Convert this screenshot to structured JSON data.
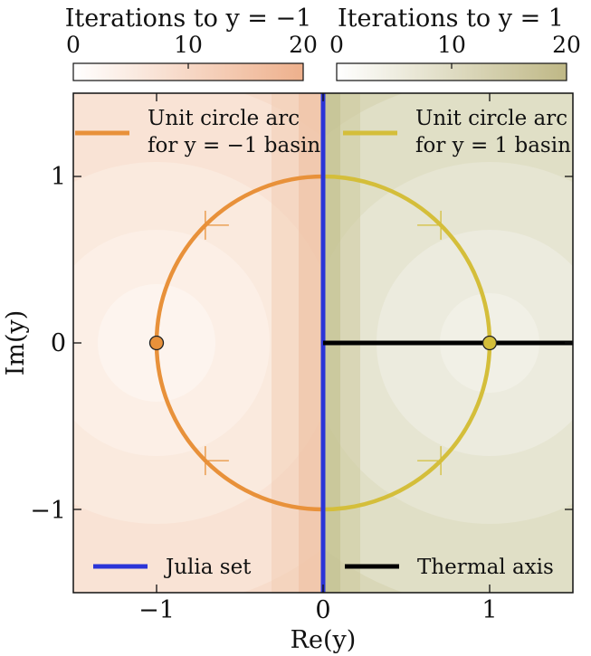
{
  "chart_data": {
    "type": "heatmap",
    "xlabel": "Re(y)",
    "ylabel": "Im(y)",
    "xlim": [
      -1.5,
      1.5
    ],
    "ylim": [
      -1.5,
      1.5
    ],
    "x_ticks": [
      -1,
      0,
      1
    ],
    "y_ticks": [
      -1,
      0,
      1
    ],
    "x_tick_labels": [
      "−1",
      "0",
      "1"
    ],
    "y_tick_labels": [
      "−1",
      "0",
      "1"
    ],
    "grid": false,
    "colorbars": [
      {
        "label": "Iterations to y = −1",
        "range": [
          0,
          20
        ],
        "ticks": [
          0,
          10,
          20
        ],
        "tick_labels": [
          "0",
          "10",
          "20"
        ],
        "color_low": "#ffffff",
        "color_high": "#eeb08c"
      },
      {
        "label": "Iterations to y = 1",
        "range": [
          0,
          20
        ],
        "ticks": [
          0,
          10,
          20
        ],
        "tick_labels": [
          "0",
          "10",
          "20"
        ],
        "color_low": "#ffffff",
        "color_high": "#bfb886"
      }
    ],
    "basins": [
      {
        "name": "y = −1 basin",
        "region": "Re(y) < 0",
        "attractor": [
          -1,
          0
        ],
        "color": "#e8913a"
      },
      {
        "name": "y = 1 basin",
        "region": "Re(y) > 0",
        "attractor": [
          1,
          0
        ],
        "color": "#d4be3a"
      }
    ],
    "lines": [
      {
        "name": "Unit circle arc for y = −1 basin",
        "label_line1": "Unit circle arc",
        "label_line2": "for y = −1 basin",
        "theta_range": [
          90,
          270
        ],
        "radius": 1,
        "color": "#e8913a"
      },
      {
        "name": "Unit circle arc for y = 1 basin",
        "label_line1": "Unit circle arc",
        "label_line2": "for y = 1 basin",
        "theta_range": [
          -90,
          90
        ],
        "radius": 1,
        "color": "#d4be3a"
      },
      {
        "name": "Julia set",
        "x": [
          0,
          0
        ],
        "y": [
          -1.5,
          1.5
        ],
        "color": "#2b35d8"
      },
      {
        "name": "Thermal axis",
        "x": [
          0,
          1.5
        ],
        "y": [
          0,
          0
        ],
        "color": "#000000"
      }
    ],
    "points": [
      {
        "x": -1,
        "y": 0,
        "color": "#e8913a"
      },
      {
        "x": 1,
        "y": 0,
        "color": "#d4be3a"
      }
    ],
    "arc_ticks_deg": [
      45,
      135,
      225,
      315
    ],
    "legend": [
      {
        "label": "Julia set",
        "color": "#2b35d8",
        "placement": "bottom-left"
      },
      {
        "label": "Thermal axis",
        "color": "#000000",
        "placement": "bottom-right"
      }
    ]
  }
}
